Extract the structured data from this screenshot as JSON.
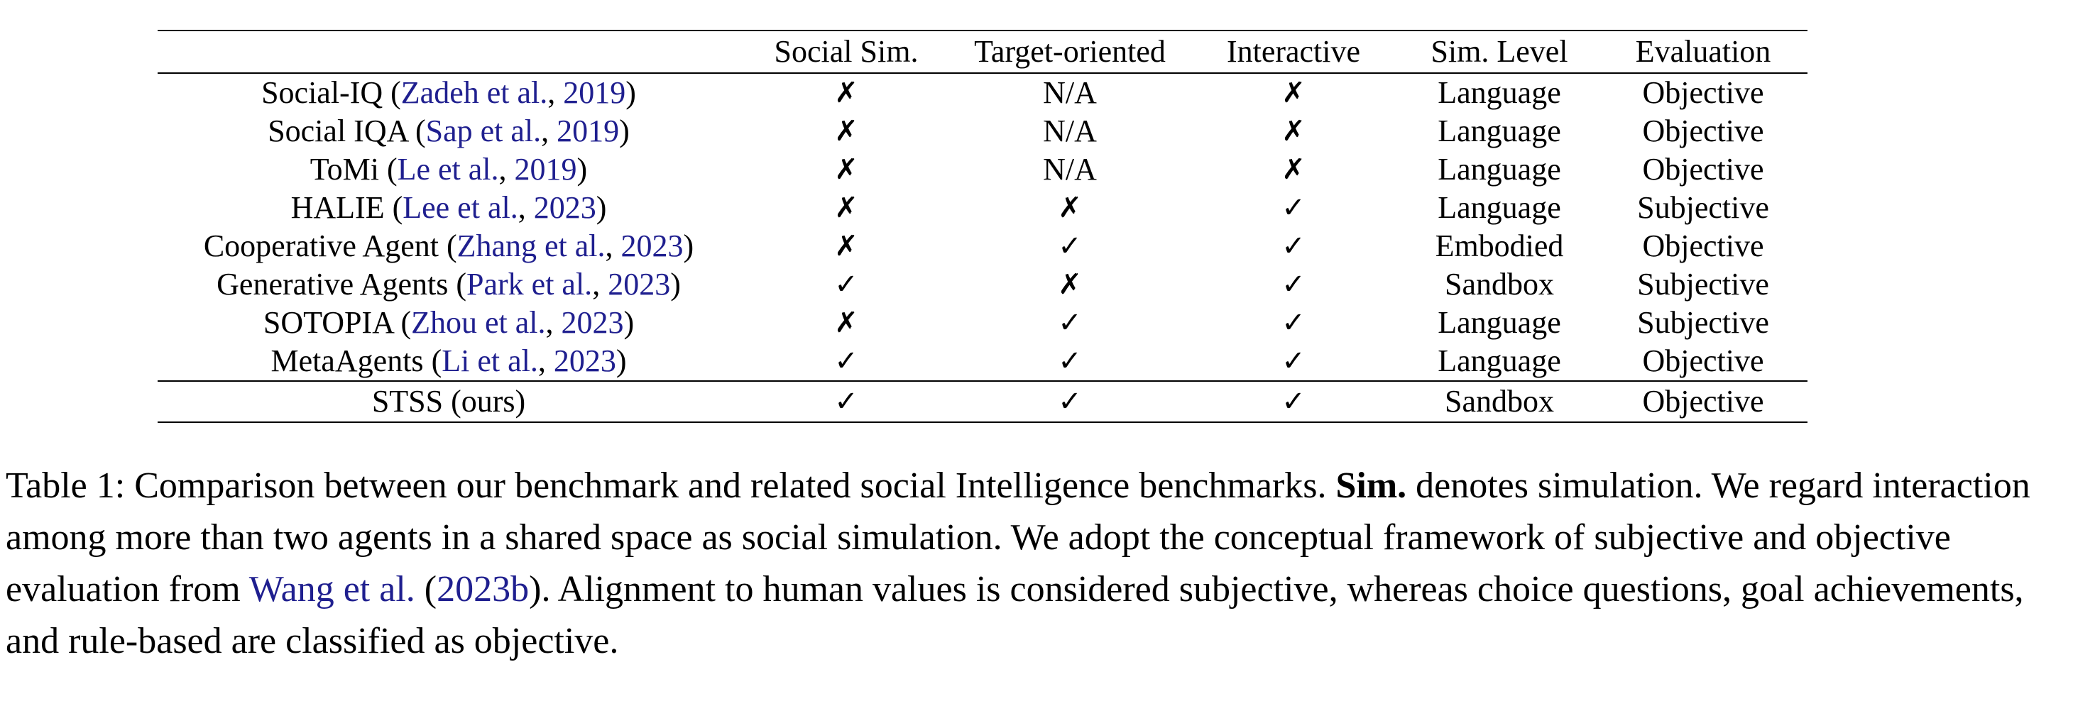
{
  "table": {
    "headers": [
      "",
      "Social Sim.",
      "Target-oriented",
      "Interactive",
      "Sim. Level",
      "Evaluation"
    ],
    "rows": [
      {
        "name": "Social-IQ",
        "cite_author": "Zadeh et al.",
        "cite_year": "2019",
        "social_sim": "✗",
        "target": "N/A",
        "interactive": "✗",
        "level": "Language",
        "evaluation": "Objective"
      },
      {
        "name": "Social IQA",
        "cite_author": "Sap et al.",
        "cite_year": "2019",
        "social_sim": "✗",
        "target": "N/A",
        "interactive": "✗",
        "level": "Language",
        "evaluation": "Objective"
      },
      {
        "name": "ToMi",
        "cite_author": "Le et al.",
        "cite_year": "2019",
        "social_sim": "✗",
        "target": "N/A",
        "interactive": "✗",
        "level": "Language",
        "evaluation": "Objective"
      },
      {
        "name": "HALIE",
        "cite_author": "Lee et al.",
        "cite_year": "2023",
        "social_sim": "✗",
        "target": "✗",
        "interactive": "✓",
        "level": "Language",
        "evaluation": "Subjective"
      },
      {
        "name": "Cooperative Agent",
        "cite_author": "Zhang et al.",
        "cite_year": "2023",
        "social_sim": "✗",
        "target": "✓",
        "interactive": "✓",
        "level": "Embodied",
        "evaluation": "Objective"
      },
      {
        "name": "Generative Agents",
        "cite_author": "Park et al.",
        "cite_year": "2023",
        "social_sim": "✓",
        "target": "✗",
        "interactive": "✓",
        "level": "Sandbox",
        "evaluation": "Subjective"
      },
      {
        "name": "SOTOPIA",
        "cite_author": "Zhou et al.",
        "cite_year": "2023",
        "social_sim": "✗",
        "target": "✓",
        "interactive": "✓",
        "level": "Language",
        "evaluation": "Subjective"
      },
      {
        "name": "MetaAgents",
        "cite_author": "Li et al.",
        "cite_year": "2023",
        "social_sim": "✓",
        "target": "✓",
        "interactive": "✓",
        "level": "Language",
        "evaluation": "Objective"
      }
    ],
    "ours": {
      "name": "STSS (ours)",
      "social_sim": "✓",
      "target": "✓",
      "interactive": "✓",
      "level": "Sandbox",
      "evaluation": "Objective"
    }
  },
  "caption": {
    "label": "Table 1:",
    "part1": "Comparison between our benchmark and related social Intelligence benchmarks.",
    "bold_term": "Sim.",
    "part2": "denotes simulation. We regard interaction among more than two agents in a shared space as social simulation. We adopt the conceptual framework of subjective and objective evaluation from",
    "cite_author": "Wang et al.",
    "cite_year": "2023b",
    "part3": ". Alignment to human values is considered subjective, whereas choice questions, goal achievements, and rule-based are classified as objective."
  }
}
